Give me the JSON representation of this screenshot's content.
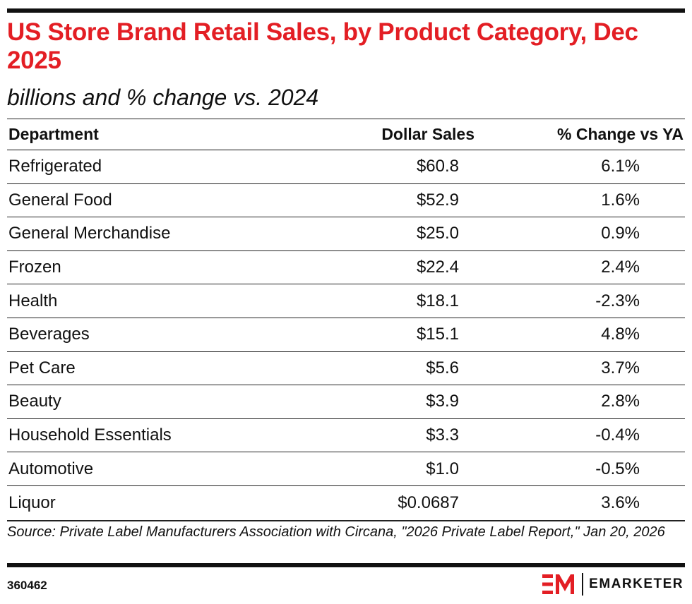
{
  "title": "US Store Brand Retail Sales, by Product Category, Dec 2025",
  "subtitle": "billions and % change vs. 2024",
  "chart_data": {
    "type": "table",
    "columns": [
      "Department",
      "Dollar Sales",
      "% Change vs YA"
    ],
    "rows": [
      {
        "department": "Refrigerated",
        "sales": "$60.8",
        "change": "6.1%"
      },
      {
        "department": "General Food",
        "sales": "$52.9",
        "change": "1.6%"
      },
      {
        "department": "General Merchandise",
        "sales": "$25.0",
        "change": "0.9%"
      },
      {
        "department": "Frozen",
        "sales": "$22.4",
        "change": "2.4%"
      },
      {
        "department": "Health",
        "sales": "$18.1",
        "change": "-2.3%"
      },
      {
        "department": "Beverages",
        "sales": "$15.1",
        "change": "4.8%"
      },
      {
        "department": "Pet Care",
        "sales": "$5.6",
        "change": "3.7%"
      },
      {
        "department": "Beauty",
        "sales": "$3.9",
        "change": "2.8%"
      },
      {
        "department": "Household Essentials",
        "sales": "$3.3",
        "change": "-0.4%"
      },
      {
        "department": "Automotive",
        "sales": "$1.0",
        "change": "-0.5%"
      },
      {
        "department": "Liquor",
        "sales": "$0.0687",
        "change": "3.6%"
      }
    ]
  },
  "source": "Source: Private Label Manufacturers Association with Circana, \"2026 Private Label Report,\" Jan 20, 2026",
  "chart_id": "360462",
  "brand": {
    "name": "EMARKETER",
    "color": "#e31e24",
    "icon": "emarketer-logo-icon"
  }
}
